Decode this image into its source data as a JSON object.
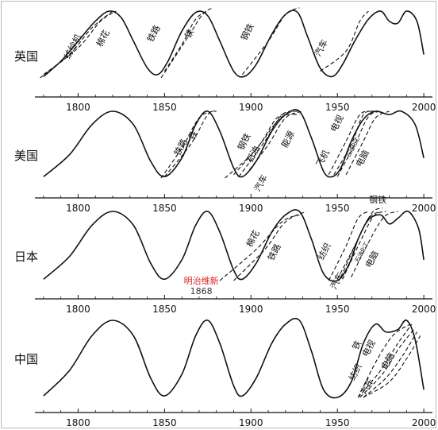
{
  "chart_data": {
    "type": "line",
    "panels": [
      {
        "country": "英国",
        "x_ticks": [
          1800,
          1850,
          1900,
          1950,
          2000
        ],
        "xlim": [
          1775,
          2005
        ],
        "main_curve": [
          [
            1780,
            0.02
          ],
          [
            1790,
            0.25
          ],
          [
            1800,
            0.55
          ],
          [
            1810,
            0.85
          ],
          [
            1818,
            1.0
          ],
          [
            1825,
            0.9
          ],
          [
            1832,
            0.55
          ],
          [
            1840,
            0.15
          ],
          [
            1846,
            0.05
          ],
          [
            1852,
            0.25
          ],
          [
            1860,
            0.7
          ],
          [
            1868,
            0.98
          ],
          [
            1875,
            0.93
          ],
          [
            1882,
            0.55
          ],
          [
            1890,
            0.1
          ],
          [
            1896,
            0.02
          ],
          [
            1903,
            0.2
          ],
          [
            1912,
            0.65
          ],
          [
            1920,
            0.95
          ],
          [
            1927,
            0.98
          ],
          [
            1933,
            0.6
          ],
          [
            1940,
            0.15
          ],
          [
            1947,
            0.02
          ],
          [
            1953,
            0.2
          ],
          [
            1960,
            0.55
          ],
          [
            1968,
            0.88
          ],
          [
            1975,
            1.0
          ],
          [
            1980,
            0.85
          ],
          [
            1985,
            0.82
          ],
          [
            1990,
            1.0
          ],
          [
            1996,
            0.85
          ],
          [
            2000,
            0.35
          ]
        ],
        "industry_curves": [
          {
            "label": "纺纱机",
            "points": [
              [
                1778,
                0.0
              ],
              [
                1795,
                0.35
              ],
              [
                1808,
                0.75
              ],
              [
                1820,
                1.0
              ]
            ]
          },
          {
            "label": "棉花",
            "points": [
              [
                1780,
                0.05
              ],
              [
                1800,
                0.45
              ],
              [
                1813,
                0.85
              ],
              [
                1822,
                1.0
              ]
            ]
          },
          {
            "label": "铁路",
            "points": [
              [
                1850,
                0.1
              ],
              [
                1860,
                0.5
              ],
              [
                1868,
                0.88
              ],
              [
                1875,
                1.0
              ]
            ]
          },
          {
            "label": "铁",
            "points": [
              [
                1848,
                0.0
              ],
              [
                1862,
                0.55
              ],
              [
                1872,
                0.95
              ],
              [
                1878,
                1.05
              ]
            ]
          },
          {
            "label": "钢铁",
            "points": [
              [
                1895,
                0.05
              ],
              [
                1910,
                0.55
              ],
              [
                1920,
                0.95
              ],
              [
                1928,
                1.05
              ]
            ]
          },
          {
            "label": "汽车",
            "points": [
              [
                1940,
                0.1
              ],
              [
                1955,
                0.4
              ],
              [
                1963,
                0.85
              ],
              [
                1968,
                1.0
              ]
            ]
          }
        ]
      },
      {
        "country": "美国",
        "x_ticks": [
          1800,
          1850,
          1900,
          1950,
          2000
        ],
        "xlim": [
          1775,
          2005
        ],
        "main_curve": [
          [
            1780,
            0.02
          ],
          [
            1795,
            0.35
          ],
          [
            1808,
            0.8
          ],
          [
            1820,
            1.0
          ],
          [
            1832,
            0.8
          ],
          [
            1842,
            0.25
          ],
          [
            1850,
            0.02
          ],
          [
            1860,
            0.3
          ],
          [
            1868,
            0.8
          ],
          [
            1875,
            1.0
          ],
          [
            1882,
            0.7
          ],
          [
            1890,
            0.15
          ],
          [
            1895,
            0.02
          ],
          [
            1903,
            0.25
          ],
          [
            1912,
            0.7
          ],
          [
            1920,
            0.95
          ],
          [
            1928,
            1.0
          ],
          [
            1935,
            0.6
          ],
          [
            1942,
            0.1
          ],
          [
            1947,
            0.02
          ],
          [
            1952,
            0.15
          ],
          [
            1958,
            0.55
          ],
          [
            1965,
            0.88
          ],
          [
            1972,
            1.0
          ],
          [
            1980,
            0.95
          ],
          [
            1987,
            1.0
          ],
          [
            1995,
            0.8
          ],
          [
            2000,
            0.3
          ]
        ],
        "industry_curves": [
          {
            "label": "铁路",
            "points": [
              [
                1848,
                0.0
              ],
              [
                1860,
                0.45
              ],
              [
                1870,
                0.9
              ],
              [
                1878,
                1.0
              ]
            ]
          },
          {
            "label": "铁",
            "points": [
              [
                1850,
                0.02
              ],
              [
                1865,
                0.5
              ],
              [
                1875,
                0.95
              ],
              [
                1880,
                1.0
              ]
            ]
          },
          {
            "label": "钢铁",
            "points": [
              [
                1890,
                0.05
              ],
              [
                1905,
                0.5
              ],
              [
                1915,
                0.9
              ],
              [
                1925,
                1.0
              ]
            ]
          },
          {
            "label": "石油",
            "points": [
              [
                1893,
                0.02
              ],
              [
                1908,
                0.55
              ],
              [
                1918,
                0.95
              ],
              [
                1927,
                1.0
              ]
            ]
          },
          {
            "label": "能源",
            "points": [
              [
                1897,
                0.05
              ],
              [
                1910,
                0.5
              ],
              [
                1920,
                0.9
              ],
              [
                1930,
                1.0
              ]
            ]
          },
          {
            "label": "汽车",
            "points": [
              [
                1885,
                0.0
              ],
              [
                1902,
                0.4
              ],
              [
                1917,
                0.9
              ],
              [
                1928,
                0.95
              ]
            ]
          },
          {
            "label": "电视",
            "points": [
              [
                1945,
                0.05
              ],
              [
                1955,
                0.55
              ],
              [
                1963,
                0.95
              ],
              [
                1970,
                1.0
              ]
            ]
          },
          {
            "label": "飞机",
            "points": [
              [
                1948,
                0.05
              ],
              [
                1958,
                0.5
              ],
              [
                1965,
                0.95
              ],
              [
                1972,
                1.0
              ]
            ]
          },
          {
            "label": "石油化工",
            "points": [
              [
                1950,
                0.02
              ],
              [
                1960,
                0.5
              ],
              [
                1968,
                0.92
              ],
              [
                1975,
                1.0
              ]
            ]
          },
          {
            "label": "电脑",
            "points": [
              [
                1955,
                0.05
              ],
              [
                1965,
                0.55
              ],
              [
                1972,
                0.9
              ],
              [
                1980,
                1.0
              ]
            ]
          }
        ]
      },
      {
        "country": "日本",
        "x_ticks": [
          1800,
          1850,
          1900,
          1950,
          2000
        ],
        "xlim": [
          1775,
          2005
        ],
        "main_curve": [
          [
            1780,
            0.02
          ],
          [
            1795,
            0.35
          ],
          [
            1808,
            0.8
          ],
          [
            1820,
            1.0
          ],
          [
            1832,
            0.8
          ],
          [
            1842,
            0.25
          ],
          [
            1850,
            0.02
          ],
          [
            1860,
            0.3
          ],
          [
            1868,
            0.8
          ],
          [
            1875,
            1.0
          ],
          [
            1882,
            0.7
          ],
          [
            1890,
            0.15
          ],
          [
            1895,
            0.02
          ],
          [
            1903,
            0.25
          ],
          [
            1912,
            0.7
          ],
          [
            1920,
            0.95
          ],
          [
            1928,
            1.0
          ],
          [
            1935,
            0.6
          ],
          [
            1942,
            0.1
          ],
          [
            1950,
            0.0
          ],
          [
            1957,
            0.25
          ],
          [
            1962,
            0.6
          ],
          [
            1968,
            0.88
          ],
          [
            1975,
            0.95
          ],
          [
            1980,
            0.82
          ],
          [
            1985,
            0.9
          ],
          [
            1991,
            1.0
          ],
          [
            1997,
            0.75
          ],
          [
            2000,
            0.3
          ]
        ],
        "industry_curves": [
          {
            "label": "棉花",
            "points": [
              [
                1882,
                0.0
              ],
              [
                1903,
                0.45
              ],
              [
                1918,
                0.85
              ],
              [
                1928,
                0.95
              ]
            ]
          },
          {
            "label": "铁路",
            "points": [
              [
                1890,
                0.0
              ],
              [
                1908,
                0.45
              ],
              [
                1920,
                0.85
              ],
              [
                1932,
                1.0
              ]
            ]
          },
          {
            "label": "纺织",
            "points": [
              [
                1945,
                0.0
              ],
              [
                1955,
                0.5
              ],
              [
                1962,
                0.9
              ],
              [
                1968,
                1.0
              ]
            ]
          },
          {
            "label": "汽车",
            "points": [
              [
                1950,
                0.02
              ],
              [
                1960,
                0.5
              ],
              [
                1968,
                0.9
              ],
              [
                1975,
                1.0
              ]
            ]
          },
          {
            "label": "钢铁",
            "points": [
              [
                1952,
                0.05
              ],
              [
                1962,
                0.6
              ],
              [
                1970,
                0.98
              ],
              [
                1976,
                1.05
              ]
            ]
          },
          {
            "label": "石油化工",
            "points": [
              [
                1953,
                0.02
              ],
              [
                1963,
                0.55
              ],
              [
                1971,
                0.93
              ],
              [
                1978,
                1.0
              ]
            ]
          },
          {
            "label": "电脑",
            "points": [
              [
                1958,
                0.05
              ],
              [
                1968,
                0.55
              ],
              [
                1977,
                0.92
              ],
              [
                1985,
                1.0
              ]
            ]
          }
        ],
        "annotation": {
          "text": "明治维新",
          "year_label": "1868",
          "year": 1868
        }
      },
      {
        "country": "中国",
        "x_ticks": [
          1800,
          1850,
          1900,
          1950,
          2000
        ],
        "xlim": [
          1775,
          2005
        ],
        "main_curve": [
          [
            1780,
            0.02
          ],
          [
            1795,
            0.35
          ],
          [
            1808,
            0.8
          ],
          [
            1820,
            1.0
          ],
          [
            1832,
            0.8
          ],
          [
            1842,
            0.25
          ],
          [
            1850,
            0.02
          ],
          [
            1860,
            0.3
          ],
          [
            1868,
            0.8
          ],
          [
            1875,
            1.0
          ],
          [
            1882,
            0.7
          ],
          [
            1890,
            0.15
          ],
          [
            1895,
            0.02
          ],
          [
            1903,
            0.25
          ],
          [
            1912,
            0.7
          ],
          [
            1920,
            0.95
          ],
          [
            1928,
            1.0
          ],
          [
            1935,
            0.6
          ],
          [
            1942,
            0.1
          ],
          [
            1950,
            0.0
          ],
          [
            1958,
            0.2
          ],
          [
            1965,
            0.7
          ],
          [
            1972,
            0.95
          ],
          [
            1978,
            0.85
          ],
          [
            1985,
            0.88
          ],
          [
            1990,
            1.0
          ],
          [
            1995,
            0.75
          ],
          [
            2000,
            0.1
          ]
        ],
        "industry_curves": [
          {
            "label": "铁",
            "points": [
              [
                1962,
                0.0
              ],
              [
                1972,
                0.45
              ],
              [
                1982,
                0.8
              ],
              [
                1992,
                0.95
              ]
            ]
          },
          {
            "label": "纺织",
            "points": [
              [
                1962,
                0.0
              ],
              [
                1975,
                0.35
              ],
              [
                1985,
                0.7
              ],
              [
                1993,
                0.95
              ]
            ]
          },
          {
            "label": "电视",
            "points": [
              [
                1963,
                0.0
              ],
              [
                1976,
                0.3
              ],
              [
                1986,
                0.65
              ],
              [
                1995,
                0.9
              ]
            ]
          },
          {
            "label": "汽车",
            "points": [
              [
                1965,
                0.0
              ],
              [
                1978,
                0.25
              ],
              [
                1988,
                0.55
              ],
              [
                1996,
                0.85
              ]
            ]
          },
          {
            "label": "电脑",
            "points": [
              [
                1965,
                0.0
              ],
              [
                1980,
                0.2
              ],
              [
                1990,
                0.5
              ],
              [
                1998,
                0.8
              ]
            ]
          }
        ]
      }
    ],
    "line_styles": {
      "main": "solid",
      "industry": "dashed"
    },
    "colors": {
      "line": "#111111",
      "annotation": "#d8262c",
      "frame": "#b9b9b9"
    }
  }
}
